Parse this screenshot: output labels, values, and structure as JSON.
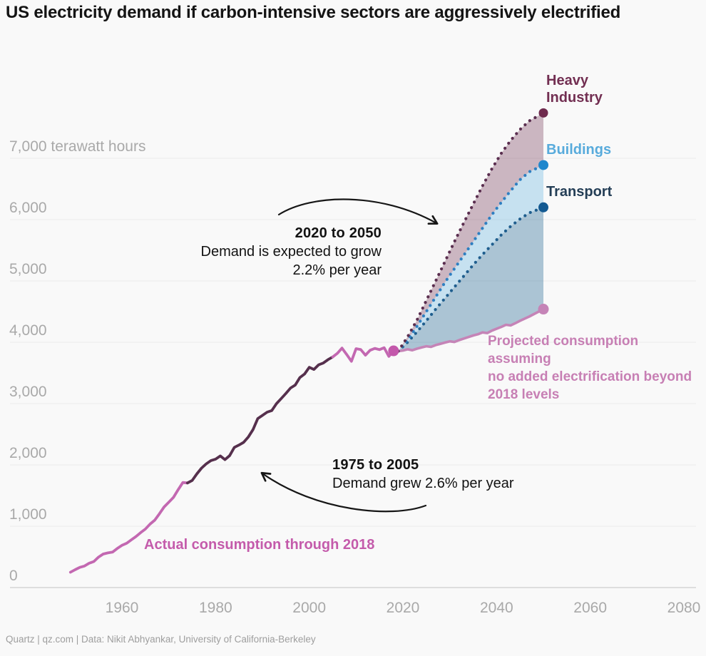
{
  "title": "US electricity demand if carbon-intensive sectors are aggressively electrified",
  "footer": "Quartz | qz.com | Data: Nikit Abhyankar, University of California-Berkeley",
  "labels": {
    "heavy_industry_line1": "Heavy",
    "heavy_industry_line2": "Industry",
    "buildings": "Buildings",
    "transport": "Transport",
    "projected_line1": "Projected consumption assuming",
    "projected_line2": "no added electrification beyond",
    "projected_line3": "2018 levels",
    "actual": "Actual consumption through 2018"
  },
  "annotations": {
    "future_growth": {
      "heading": "2020 to 2050",
      "line1": "Demand is expected to grow",
      "line2": "2.2% per year"
    },
    "past_growth": {
      "heading": "1975 to 2005",
      "line1": "Demand grew 2.6% per year"
    }
  },
  "colors": {
    "background": "#f9f9f9",
    "grid": "#eaeaea",
    "axis": "#d6d6d6",
    "tick_text": "#a9a9a9",
    "actual_pink": "#c368b1",
    "actual_dark": "#56304d",
    "actual_end_dot": "#c358ab",
    "baseline_pink": "#c584b7",
    "heavy_line": "#5a2e4f",
    "heavy_dot": "#6f2b4e",
    "heavy_fill": "rgba(109,46,78,0.33)",
    "buildings_line": "#2e7fc1",
    "buildings_dot": "#1f87cd",
    "buildings_fill": "rgba(90,174,222,0.32)",
    "transport_line": "#1f5e8e",
    "transport_dot": "#135a92",
    "transport_fill": "rgba(25,97,143,0.35)",
    "annotation_ink": "#161616"
  },
  "chart_data": {
    "type": "line",
    "title": "US electricity demand if carbon-intensive sectors are aggressively electrified",
    "ylabel": "terawatt hours",
    "xlabel": "",
    "x_axis": {
      "ticks": [
        1960,
        1980,
        2000,
        2020,
        2040,
        2060,
        2080
      ],
      "range": [
        1947,
        2083
      ]
    },
    "y_axis": {
      "ticks": [
        0,
        1000,
        2000,
        3000,
        4000,
        5000,
        6000,
        7000
      ],
      "tick_labels": [
        "0",
        "1,000",
        "2,000",
        "3,000",
        "4,000",
        "5,000",
        "6,000",
        "7,000 terawatt hours"
      ],
      "range": [
        0,
        7750
      ],
      "grid": true
    },
    "series": [
      {
        "id": "actual",
        "name": "Actual consumption through 2018",
        "style": "solid",
        "segments": [
          {
            "from": 1949,
            "to": 1974,
            "color_key": "actual_pink"
          },
          {
            "from": 1974,
            "to": 2005,
            "color_key": "actual_dark"
          },
          {
            "from": 2005,
            "to": 2018,
            "color_key": "actual_pink"
          }
        ],
        "end_dot": {
          "year": 2018,
          "value": 3860,
          "color_key": "actual_end_dot",
          "r": 7.5
        },
        "points": [
          [
            1949,
            250
          ],
          [
            1950,
            291
          ],
          [
            1951,
            329
          ],
          [
            1952,
            351
          ],
          [
            1953,
            396
          ],
          [
            1954,
            424
          ],
          [
            1955,
            497
          ],
          [
            1956,
            546
          ],
          [
            1957,
            565
          ],
          [
            1958,
            578
          ],
          [
            1959,
            637
          ],
          [
            1960,
            688
          ],
          [
            1961,
            722
          ],
          [
            1962,
            778
          ],
          [
            1963,
            833
          ],
          [
            1964,
            896
          ],
          [
            1965,
            954
          ],
          [
            1966,
            1035
          ],
          [
            1967,
            1099
          ],
          [
            1968,
            1202
          ],
          [
            1969,
            1314
          ],
          [
            1970,
            1392
          ],
          [
            1971,
            1470
          ],
          [
            1972,
            1595
          ],
          [
            1973,
            1713
          ],
          [
            1974,
            1706
          ],
          [
            1975,
            1747
          ],
          [
            1976,
            1855
          ],
          [
            1977,
            1948
          ],
          [
            1978,
            2018
          ],
          [
            1979,
            2071
          ],
          [
            1980,
            2094
          ],
          [
            1981,
            2147
          ],
          [
            1982,
            2086
          ],
          [
            1983,
            2151
          ],
          [
            1984,
            2286
          ],
          [
            1985,
            2324
          ],
          [
            1986,
            2369
          ],
          [
            1987,
            2457
          ],
          [
            1988,
            2578
          ],
          [
            1989,
            2755
          ],
          [
            1990,
            2807
          ],
          [
            1991,
            2861
          ],
          [
            1992,
            2886
          ],
          [
            1993,
            2999
          ],
          [
            1994,
            3081
          ],
          [
            1995,
            3164
          ],
          [
            1996,
            3254
          ],
          [
            1997,
            3302
          ],
          [
            1998,
            3425
          ],
          [
            1999,
            3483
          ],
          [
            2000,
            3592
          ],
          [
            2001,
            3557
          ],
          [
            2002,
            3632
          ],
          [
            2003,
            3662
          ],
          [
            2004,
            3716
          ],
          [
            2005,
            3760
          ],
          [
            2006,
            3820
          ],
          [
            2007,
            3905
          ],
          [
            2008,
            3800
          ],
          [
            2009,
            3690
          ],
          [
            2010,
            3895
          ],
          [
            2011,
            3880
          ],
          [
            2012,
            3790
          ],
          [
            2013,
            3870
          ],
          [
            2014,
            3900
          ],
          [
            2015,
            3880
          ],
          [
            2016,
            3910
          ],
          [
            2017,
            3770
          ],
          [
            2018,
            3860
          ]
        ]
      },
      {
        "id": "baseline",
        "name": "Projected consumption assuming no added electrification beyond 2018 levels",
        "style": "solid",
        "color_key": "baseline_pink",
        "end_dot": {
          "year": 2050,
          "value": 4540,
          "color_key": "baseline_pink",
          "r": 7.5
        },
        "points": [
          [
            2019,
            3855
          ],
          [
            2020,
            3865
          ],
          [
            2021,
            3885
          ],
          [
            2022,
            3870
          ],
          [
            2023,
            3895
          ],
          [
            2024,
            3915
          ],
          [
            2025,
            3935
          ],
          [
            2026,
            3925
          ],
          [
            2027,
            3955
          ],
          [
            2028,
            3975
          ],
          [
            2029,
            3995
          ],
          [
            2030,
            4015
          ],
          [
            2031,
            4005
          ],
          [
            2032,
            4035
          ],
          [
            2033,
            4060
          ],
          [
            2034,
            4085
          ],
          [
            2035,
            4110
          ],
          [
            2036,
            4130
          ],
          [
            2037,
            4160
          ],
          [
            2038,
            4150
          ],
          [
            2039,
            4190
          ],
          [
            2040,
            4220
          ],
          [
            2041,
            4250
          ],
          [
            2042,
            4285
          ],
          [
            2043,
            4275
          ],
          [
            2044,
            4310
          ],
          [
            2045,
            4350
          ],
          [
            2046,
            4385
          ],
          [
            2047,
            4420
          ],
          [
            2048,
            4460
          ],
          [
            2049,
            4500
          ],
          [
            2050,
            4540
          ]
        ]
      },
      {
        "id": "transport",
        "name": "Transport",
        "style": "dotted",
        "color_key": "transport_line",
        "fill_to": "baseline",
        "fill_key": "transport_fill",
        "end_dot": {
          "year": 2050,
          "value": 6200,
          "color_key": "transport_dot",
          "r": 7
        },
        "points": [
          [
            2019,
            3855
          ],
          [
            2021,
            4000
          ],
          [
            2023,
            4170
          ],
          [
            2025,
            4350
          ],
          [
            2027,
            4540
          ],
          [
            2029,
            4720
          ],
          [
            2031,
            4900
          ],
          [
            2033,
            5080
          ],
          [
            2035,
            5260
          ],
          [
            2037,
            5430
          ],
          [
            2039,
            5590
          ],
          [
            2041,
            5750
          ],
          [
            2043,
            5890
          ],
          [
            2045,
            6010
          ],
          [
            2047,
            6110
          ],
          [
            2050,
            6200
          ]
        ]
      },
      {
        "id": "buildings",
        "name": "Buildings",
        "style": "dotted",
        "color_key": "buildings_line",
        "fill_to": "transport",
        "fill_key": "buildings_fill",
        "end_dot": {
          "year": 2050,
          "value": 6890,
          "color_key": "buildings_dot",
          "r": 7
        },
        "points": [
          [
            2019,
            3855
          ],
          [
            2021,
            4040
          ],
          [
            2023,
            4260
          ],
          [
            2025,
            4500
          ],
          [
            2027,
            4740
          ],
          [
            2029,
            4980
          ],
          [
            2031,
            5200
          ],
          [
            2033,
            5420
          ],
          [
            2035,
            5640
          ],
          [
            2037,
            5860
          ],
          [
            2039,
            6080
          ],
          [
            2041,
            6280
          ],
          [
            2043,
            6470
          ],
          [
            2045,
            6650
          ],
          [
            2047,
            6780
          ],
          [
            2050,
            6890
          ]
        ]
      },
      {
        "id": "heavy_industry",
        "name": "Heavy Industry",
        "style": "dotted",
        "color_key": "heavy_line",
        "fill_to": "buildings",
        "fill_key": "heavy_fill",
        "end_dot": {
          "year": 2050,
          "value": 7740,
          "color_key": "heavy_dot",
          "r": 6.5
        },
        "points": [
          [
            2019,
            3855
          ],
          [
            2021,
            4090
          ],
          [
            2023,
            4360
          ],
          [
            2025,
            4680
          ],
          [
            2027,
            5000
          ],
          [
            2029,
            5320
          ],
          [
            2031,
            5640
          ],
          [
            2033,
            5950
          ],
          [
            2035,
            6250
          ],
          [
            2037,
            6550
          ],
          [
            2039,
            6830
          ],
          [
            2041,
            7080
          ],
          [
            2043,
            7290
          ],
          [
            2045,
            7470
          ],
          [
            2047,
            7610
          ],
          [
            2050,
            7740
          ]
        ]
      }
    ]
  }
}
